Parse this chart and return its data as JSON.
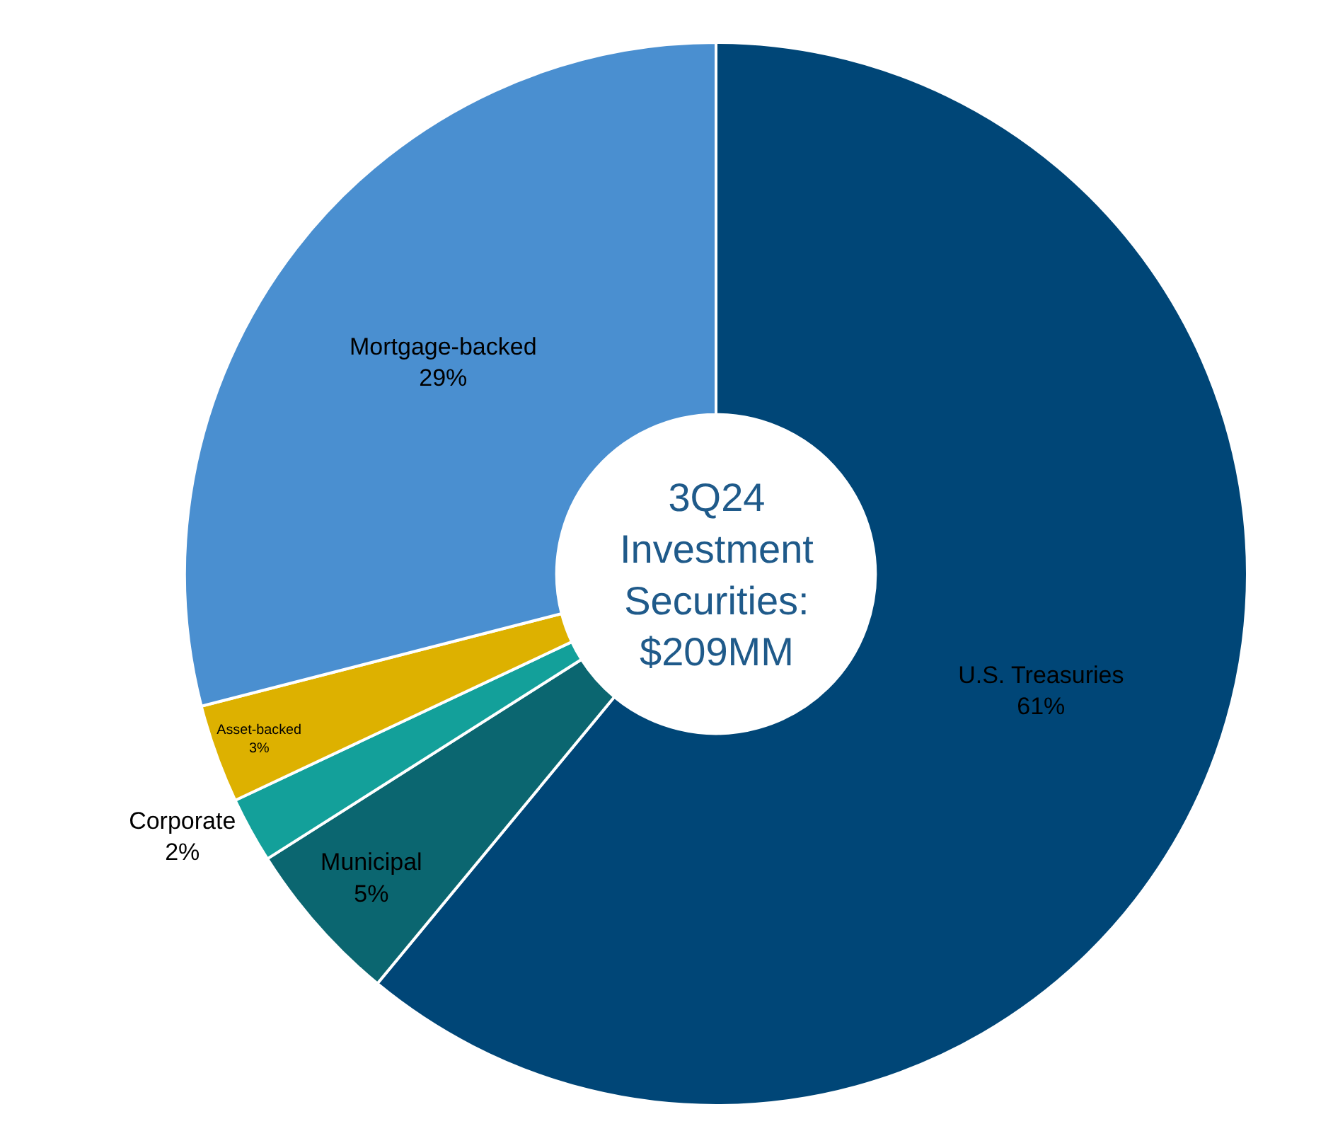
{
  "chart_data": {
    "type": "donut",
    "categories": [
      "U.S. Treasuries",
      "Municipal",
      "Corporate",
      "Asset-backed",
      "Mortgage-backed"
    ],
    "values": [
      61,
      5,
      2,
      3,
      29
    ],
    "value_labels": [
      "61%",
      "5%",
      "2%",
      "3%",
      "29%"
    ],
    "colors": [
      "#004677",
      "#0b6670",
      "#13a09a",
      "#ddb100",
      "#4a8fd0"
    ],
    "annotations": [
      "3Q24\nInvestment\nSecurities:\n$209MM"
    ],
    "legend": false
  }
}
